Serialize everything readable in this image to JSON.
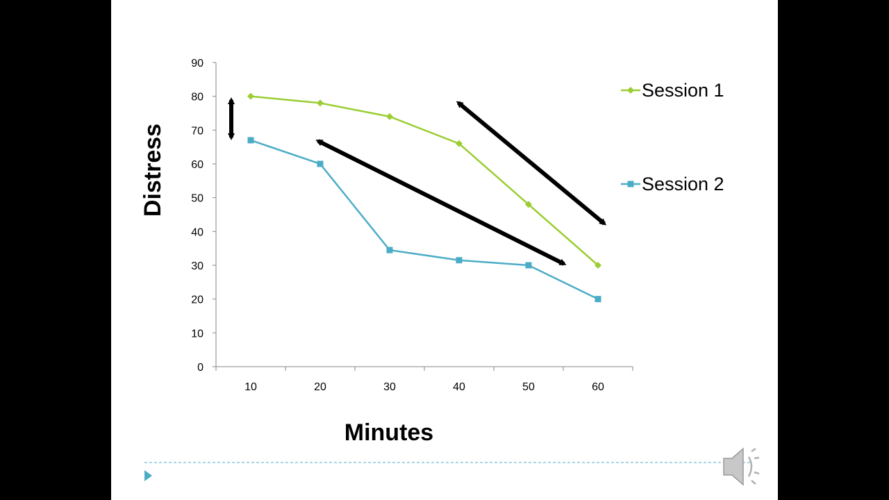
{
  "slide": {
    "background": "#ffffff",
    "letterbox_color": "#000000",
    "footer_divider_color": "#4bacc6",
    "footer_arrow_icon": "triangle-right-icon",
    "audio_icon": "speaker-icon"
  },
  "chart_data": {
    "type": "line",
    "x": [
      10,
      20,
      30,
      40,
      50,
      60
    ],
    "xlabel": "Minutes",
    "ylabel": "Distress",
    "ylim": [
      0,
      90
    ],
    "yticks": [
      0,
      10,
      20,
      30,
      40,
      50,
      60,
      70,
      80,
      90
    ],
    "grid": false,
    "legend_position": "right",
    "series": [
      {
        "name": "Session 1",
        "color": "#9acd32",
        "marker": "diamond",
        "values": [
          80,
          78,
          74,
          66,
          48,
          30
        ]
      },
      {
        "name": "Session 2",
        "color": "#4bacc6",
        "marker": "square",
        "values": [
          67,
          60,
          34.5,
          31.5,
          30,
          20
        ]
      }
    ],
    "annotations": [
      {
        "type": "double-arrow",
        "description": "gap between sessions at start"
      },
      {
        "type": "double-arrow",
        "description": "session 1 descent"
      },
      {
        "type": "double-arrow",
        "description": "session 2 descent"
      }
    ]
  }
}
